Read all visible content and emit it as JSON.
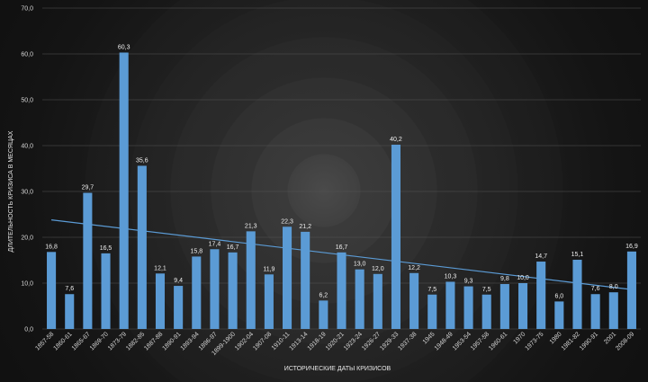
{
  "chart_data": {
    "type": "bar",
    "title": "",
    "xlabel": "ИСТОРИЧЕСКИЕ ДАТЫ КРИЗИСОВ",
    "ylabel": "ДЛИТЕЛЬНОСТЬ КРИЗИСА В МЕСЯЦАХ",
    "ylim": [
      0,
      70
    ],
    "yticks": [
      "0,0",
      "10,0",
      "20,0",
      "30,0",
      "40,0",
      "50,0",
      "60,0",
      "70,0"
    ],
    "categories": [
      "1857-58",
      "1860-61",
      "1865-67",
      "1869-70",
      "1873-79",
      "1882-85",
      "1887-88",
      "1890-91",
      "1893-94",
      "1896-97",
      "1899-1900",
      "1902-04",
      "1907-08",
      "1910-11",
      "1913-14",
      "1918-19",
      "1920-21",
      "1923-24",
      "1926-27",
      "1929-33",
      "1937-38",
      "1945",
      "1948-49",
      "1953-54",
      "1957-58",
      "1960-61",
      "1970",
      "1973-75",
      "1980",
      "1981-82",
      "1990-91",
      "2001",
      "2008-09"
    ],
    "values": [
      16.8,
      7.6,
      29.7,
      16.5,
      60.3,
      35.6,
      12.1,
      9.4,
      15.8,
      17.4,
      16.7,
      21.3,
      11.9,
      22.3,
      21.2,
      6.2,
      16.7,
      13.0,
      12.0,
      40.2,
      12.2,
      7.5,
      10.3,
      9.3,
      7.5,
      9.8,
      10.0,
      14.7,
      6.0,
      15.1,
      7.6,
      8.0,
      16.9
    ],
    "data_labels": [
      "16,8",
      "7,6",
      "29,7",
      "16,5",
      "60,3",
      "35,6",
      "12,1",
      "9,4",
      "15,8",
      "17,4",
      "16,7",
      "21,3",
      "11,9",
      "22,3",
      "21,2",
      "6,2",
      "16,7",
      "13,0",
      "12,0",
      "40,2",
      "12,2",
      "7,5",
      "10,3",
      "9,3",
      "7,5",
      "9,8",
      "10,0",
      "14,7",
      "6,0",
      "15,1",
      "7,6",
      "8,0",
      "16,9"
    ],
    "trendline": {
      "type": "linear",
      "start_value": 23.8,
      "end_value": 8.6
    },
    "grid": true,
    "legend": "none",
    "colors": {
      "bar": "#5b9bd5",
      "trendline": "#5b9bd5",
      "grid": "#555555"
    }
  }
}
